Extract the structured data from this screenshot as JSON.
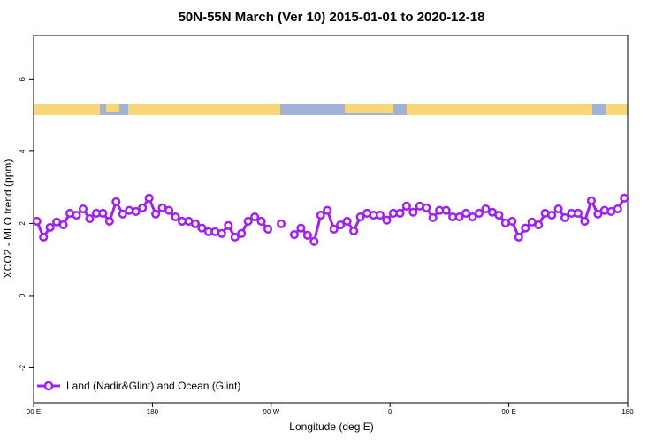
{
  "chart_data": {
    "type": "line",
    "title": "50N-55N March (Ver 10)   2015-01-01 to 2020-12-18",
    "x_label": "Longitude (deg E)",
    "y_label": "XCO2 - MLO trend (ppm)",
    "xlim": [
      90,
      540
    ],
    "ylim": [
      -2.97,
      7.21
    ],
    "xticks": [
      {
        "value": 90,
        "label": "90 E"
      },
      180,
      {
        "value": 270,
        "label": "90 W"
      },
      {
        "value": 360,
        "label": "0"
      },
      {
        "value": 450,
        "label": "90 E"
      },
      {
        "value": 540,
        "label": "180"
      }
    ],
    "yticks": [
      -2,
      0,
      2,
      4,
      6
    ],
    "legend": "bottomleft",
    "x": [
      92.5,
      97.5,
      102.5,
      107.5,
      112.5,
      117.5,
      122.5,
      127.5,
      132.5,
      137.5,
      142.5,
      147.5,
      152.5,
      157.5,
      162.5,
      167.5,
      172.5,
      177.5,
      182.5,
      187.5,
      192.5,
      197.5,
      202.5,
      207.5,
      212.5,
      217.5,
      222.5,
      227.5,
      232.5,
      237.5,
      242.5,
      247.5,
      252.5,
      257.5,
      262.5,
      267.5,
      272.5,
      277.5,
      282.5,
      287.5,
      292.5,
      297.5,
      302.5,
      307.5,
      312.5,
      317.5,
      322.5,
      327.5,
      332.5,
      337.5,
      342.5,
      347.5,
      352.5,
      357.5,
      362.5,
      367.5,
      372.5,
      377.5,
      382.5,
      387.5,
      392.5,
      397.5,
      402.5,
      407.5,
      412.5,
      417.5,
      422.5,
      427.5,
      432.5,
      437.5,
      442.5,
      447.5,
      452.5,
      457.5,
      462.5,
      467.5,
      472.5,
      477.5,
      482.5,
      487.5,
      492.5,
      497.5,
      502.5,
      507.5,
      512.5,
      517.5,
      522.5,
      527.5,
      532.5,
      537.5
    ],
    "series": [
      {
        "name": "Land (Nadir&Glint) and Ocean (Glint)",
        "color": "#a020f0",
        "values": [
          2.06,
          1.62,
          1.89,
          2.04,
          1.96,
          2.28,
          2.23,
          2.4,
          2.13,
          2.28,
          2.28,
          2.06,
          2.6,
          2.26,
          2.36,
          2.33,
          2.43,
          2.7,
          2.26,
          2.43,
          2.36,
          2.18,
          2.06,
          2.06,
          1.99,
          1.87,
          1.77,
          1.77,
          1.72,
          1.94,
          1.62,
          1.72,
          2.06,
          2.18,
          2.06,
          1.84,
          null,
          1.99,
          null,
          1.69,
          1.87,
          1.67,
          1.5,
          2.23,
          2.36,
          1.84,
          1.96,
          2.06,
          1.79,
          2.18,
          2.28,
          2.23,
          2.23,
          2.09,
          2.28,
          2.28,
          2.48,
          2.31,
          2.48,
          2.43,
          2.16,
          2.36,
          2.36,
          2.18,
          2.18,
          2.28,
          2.18,
          2.28,
          2.4,
          2.31,
          2.23,
          2.01,
          2.06,
          1.62,
          1.87,
          2.04,
          1.96,
          2.28,
          2.23,
          2.4,
          2.16,
          2.28,
          2.28,
          2.06,
          2.63,
          2.26,
          2.36,
          2.33,
          2.4,
          2.7
        ]
      }
    ]
  }
}
